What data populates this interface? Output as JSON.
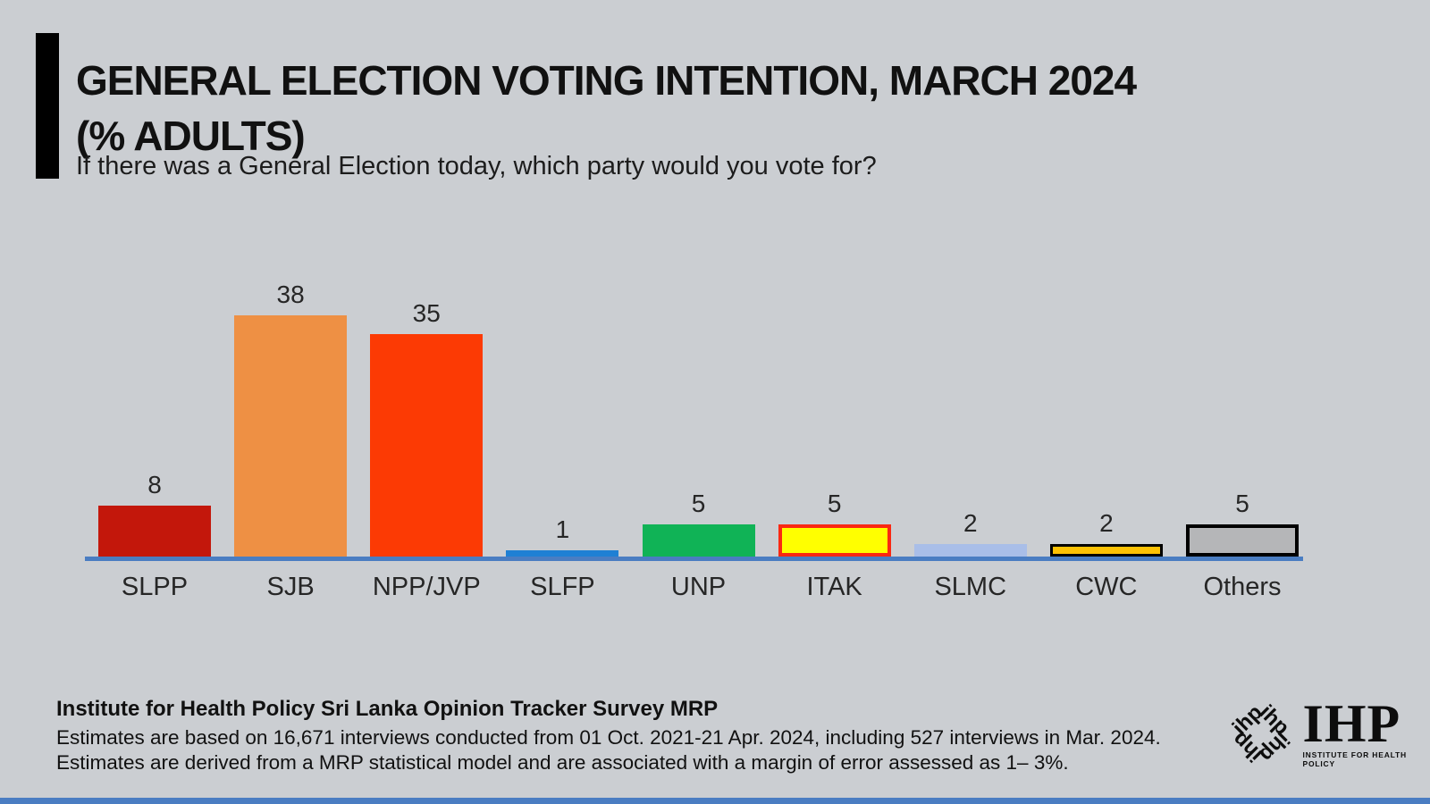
{
  "header": {
    "title_line1": "GENERAL ELECTION VOTING INTENTION, MARCH 2024",
    "title_line2": "(% ADULTS)",
    "subtitle": "If there was a General Election today, which party would you vote for?"
  },
  "chart_data": {
    "type": "bar",
    "title": "GENERAL ELECTION VOTING INTENTION, MARCH 2024 (% ADULTS)",
    "subtitle": "If there was a General Election today, which party would you vote for?",
    "categories": [
      "SLPP",
      "SJB",
      "NPP/JVP",
      "SLFP",
      "UNP",
      "ITAK",
      "SLMC",
      "CWC",
      "Others"
    ],
    "values": [
      8,
      38,
      35,
      1,
      5,
      5,
      2,
      2,
      5
    ],
    "bar_colors": [
      "#c3170b",
      "#ee9044",
      "#fc3a04",
      "#1f80d4",
      "#10b356",
      "#ffff00",
      "#a9bee8",
      "#fcc103",
      "#b5b6b8"
    ],
    "bar_border_colors": [
      null,
      null,
      null,
      null,
      null,
      "#fa2812",
      null,
      "#000000",
      "#000000"
    ],
    "bar_border_widths": [
      0,
      0,
      0,
      0,
      0,
      4,
      0,
      3,
      4
    ],
    "xlabel": "",
    "ylabel": "",
    "ylim": [
      0,
      40
    ],
    "grid": false,
    "legend": false,
    "data_labels_shown": true,
    "axis_line_color": "#4a7dc2"
  },
  "footer": {
    "source": "Institute for Health Policy Sri Lanka Opinion Tracker Survey MRP",
    "note": "Estimates are based on 16,671 interviews conducted from 01 Oct. 2021-21 Apr. 2024, including 527 interviews in Mar. 2024. Estimates are derived from a MRP statistical model and are associated with a margin of error assessed as 1– 3%."
  },
  "logo": {
    "pinwheel_text": "ihp",
    "acronym": "IHP",
    "name": "INSTITUTE FOR HEALTH POLICY"
  },
  "colors": {
    "background": "#cbced2",
    "accent_bar": "#000000",
    "axis_line": "#4a7dc2",
    "bottom_strip": "#4a7dc2",
    "text": "#1f1f1f"
  }
}
